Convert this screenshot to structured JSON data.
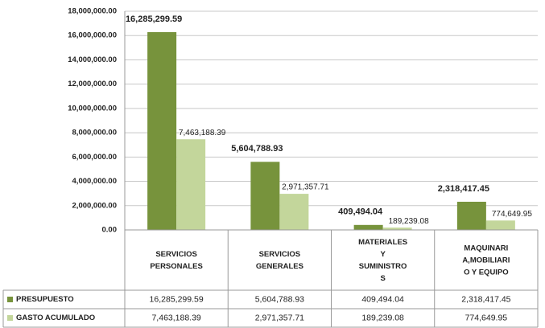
{
  "chart_data": {
    "type": "bar",
    "categories": [
      "SERVICIOS\nPERSONALES",
      "SERVICIOS\nGENERALES",
      "MATERIALES\nY\nSUMINISTRO\nS",
      "MAQUINARI\nA,MOBILIARI\nO Y EQUIPO"
    ],
    "series": [
      {
        "name": "PRESUPUESTO",
        "color": "#77933c",
        "values": [
          16285299.59,
          5604788.93,
          409494.04,
          2318417.45
        ],
        "value_labels": [
          "16,285,299.59",
          "5,604,788.93",
          "409,494.04",
          "2,318,417.45"
        ]
      },
      {
        "name": "GASTO ACUMULADO",
        "color": "#c3d69b",
        "values": [
          7463188.39,
          2971357.71,
          189239.08,
          774649.95
        ],
        "value_labels": [
          "7,463,188.39",
          "2,971,357.71",
          "189,239.08",
          "774,649.95"
        ]
      }
    ],
    "ylim": [
      0,
      18000000
    ],
    "yticks": [
      {
        "value": 0,
        "label": "0.00"
      },
      {
        "value": 2000000,
        "label": "2,000,000.00"
      },
      {
        "value": 4000000,
        "label": "4,000,000.00"
      },
      {
        "value": 6000000,
        "label": "6,000,000.00"
      },
      {
        "value": 8000000,
        "label": "8,000,000.00"
      },
      {
        "value": 10000000,
        "label": "10,000,000.00"
      },
      {
        "value": 12000000,
        "label": "12,000,000.00"
      },
      {
        "value": 14000000,
        "label": "14,000,000.00"
      },
      {
        "value": 16000000,
        "label": "16,000,000.00"
      },
      {
        "value": 18000000,
        "label": "18,000,000.00"
      }
    ],
    "grid": true,
    "legend": "table"
  }
}
